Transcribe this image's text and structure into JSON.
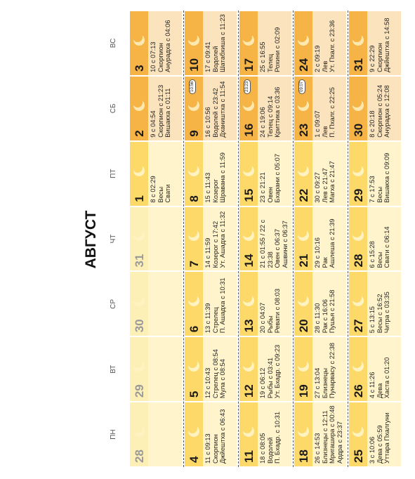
{
  "title": "АВГУСТ",
  "weekdays": [
    "ПН",
    "ВТ",
    "СР",
    "ЧТ",
    "ПТ",
    "СБ",
    "ВС"
  ],
  "weeks": [
    [
      {
        "day": "28",
        "muted": true,
        "lines": []
      },
      {
        "day": "29",
        "muted": true,
        "lines": []
      },
      {
        "day": "30",
        "muted": true,
        "lines": []
      },
      {
        "day": "31",
        "muted": true,
        "lines": []
      },
      {
        "day": "1",
        "lines": [
          "8 с 02:29",
          "Весы",
          "Свати"
        ]
      },
      {
        "day": "2",
        "lines": [
          "9 с 04:54",
          "Скорпион с 21:23",
          "Вишакха с 01:11"
        ]
      },
      {
        "day": "3",
        "lines": [
          "10 с 07:13",
          "Скорпион",
          "Анурадха с 04:06"
        ]
      }
    ],
    [
      {
        "day": "4",
        "lines": [
          "11 с 09:13",
          "Скорпион",
          "Джйештха с 06:43"
        ]
      },
      {
        "day": "5",
        "lines": [
          "12 с 10:43",
          "Стрелец с 08:54",
          "Мула с 08:54"
        ]
      },
      {
        "day": "6",
        "lines": [
          "13 с 11:39",
          "Стрелец",
          "П. Ашадха с 10:31"
        ]
      },
      {
        "day": "7",
        "lines": [
          "14 с 11:59",
          "Козерог с 17:42",
          "Ут. Ашадха с 11:32"
        ]
      },
      {
        "day": "8",
        "lines": [
          "15 с 11:43",
          "Козерог",
          "Шравана с 11:59"
        ]
      },
      {
        "day": "9",
        "badge": "10:56",
        "lines": [
          "16 с 10:56",
          "Водолей с 23:42",
          "Дхаништха с 11:54"
        ]
      },
      {
        "day": "10",
        "lines": [
          "17 с 09:41",
          "Водолей",
          "Шатабхиша с 11:23"
        ]
      }
    ],
    [
      {
        "day": "11",
        "lines": [
          "18 с 08:05",
          "Водолей",
          "П. Бхадр. с 10:31"
        ]
      },
      {
        "day": "12",
        "lines": [
          "19 с 06:12",
          "Рыбы с 03:41",
          "Ут. Бхадр. с 09:23"
        ]
      },
      {
        "day": "13",
        "lines": [
          "20 с 04:07",
          "Рыбы",
          "Ревати с 08:03"
        ]
      },
      {
        "day": "14",
        "lines": [
          "21 с 01:55 / 22 с",
          "23:38",
          "Овен с 06:37",
          "Ашвини с 06:37"
        ]
      },
      {
        "day": "15",
        "lines": [
          "23 с 21:21",
          "Овен",
          "Бхарани с 05:07"
        ]
      },
      {
        "day": "16",
        "badge": "23:23",
        "lines": [
          "24 с 19:06",
          "Телец с 09:14",
          "Криттика с 03:36"
        ]
      },
      {
        "day": "17",
        "lines": [
          "25 с 16:55",
          "Телец",
          "Рохини с 02:09"
        ]
      }
    ],
    [
      {
        "day": "18",
        "lines": [
          "26 с 14:53",
          "Близнецы с 12:11",
          "Мригашира с 00:48",
          "Ардра с 23:37"
        ]
      },
      {
        "day": "19",
        "lines": [
          "27 с 13:04",
          "Близнецы",
          "Пунарвасу с 22:38"
        ]
      },
      {
        "day": "20",
        "lines": [
          "28 с 11:30",
          "Рак с 16:06",
          "Пушья с 21:58"
        ]
      },
      {
        "day": "21",
        "lines": [
          "29 с 10:16",
          "Рак",
          "Ашлеша с 21:39"
        ]
      },
      {
        "day": "22",
        "lines": [
          "30 с 09:27",
          "Лев с 21:47",
          "Магха с 21:47"
        ]
      },
      {
        "day": "23",
        "badge": "09:07",
        "lines": [
          "1 с 09:07",
          "Лев",
          "П. Пхалг. с 22:25"
        ]
      },
      {
        "day": "24",
        "lines": [
          "2 с 09:19",
          "Лев",
          "Ут. Пхалг. с 23:36"
        ]
      }
    ],
    [
      {
        "day": "25",
        "lines": [
          "3 с 10:06",
          "Дева с 05:59",
          "Уттара Пхалгуни"
        ]
      },
      {
        "day": "26",
        "lines": [
          "4 с 11:26",
          "Дева",
          "Хаста с 01:20"
        ]
      },
      {
        "day": "27",
        "lines": [
          "5 с 13:15",
          "Весы с 16:52",
          "Читра с 03:35"
        ]
      },
      {
        "day": "28",
        "lines": [
          "6 с 15:28",
          "Весы",
          "Свати с 06:14"
        ]
      },
      {
        "day": "29",
        "lines": [
          "7 с 17:53",
          "Весы",
          "Вишакха с 09:09"
        ]
      },
      {
        "day": "30",
        "lines": [
          "8 с 20:18",
          "Скорпион с 05:24",
          "Анурадха с 12:08"
        ]
      },
      {
        "day": "31",
        "lines": [
          "9 с 22:29",
          "Скорпион",
          "Джйештха с 14:58"
        ]
      }
    ]
  ]
}
